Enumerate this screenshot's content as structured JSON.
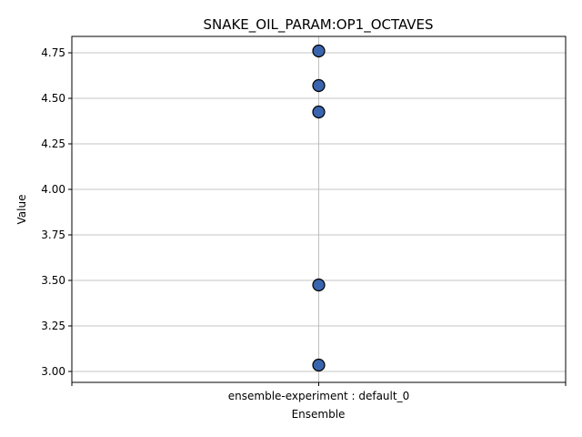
{
  "chart_data": {
    "type": "scatter",
    "title": "SNAKE_OIL_PARAM:OP1_OCTAVES",
    "xlabel": "Ensemble",
    "ylabel": "Value",
    "categories": [
      "ensemble-experiment : default_0"
    ],
    "series": [
      {
        "category": "ensemble-experiment : default_0",
        "values": [
          4.76,
          4.57,
          4.425,
          3.475,
          3.035
        ]
      }
    ],
    "ylim": [
      2.94,
      4.84
    ],
    "yticks": [
      3.0,
      3.25,
      3.5,
      3.75,
      4.0,
      4.25,
      4.5,
      4.75
    ],
    "ytick_labels": [
      "3.00",
      "3.25",
      "3.50",
      "3.75",
      "4.00",
      "4.25",
      "4.50",
      "4.75"
    ],
    "grid": true,
    "colors": {
      "marker_fill": "#3a64ad",
      "marker_edge": "#000000",
      "grid": "#b0b0b0"
    }
  }
}
